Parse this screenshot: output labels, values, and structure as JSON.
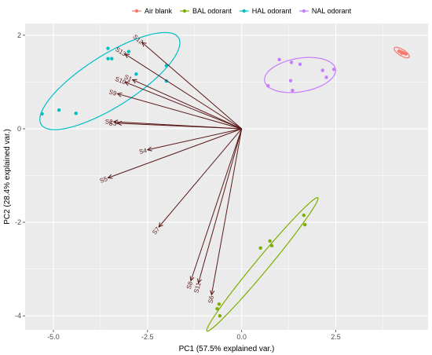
{
  "chart_data": {
    "type": "scatter",
    "title": "",
    "xlabel": "PC1 (57.5% explained var.)",
    "ylabel": "PC2 (28.4% explained var.)",
    "xlim": [
      -5.75,
      4.95
    ],
    "ylim": [
      -4.3,
      2.25
    ],
    "x_ticks": [
      -5.0,
      -2.5,
      0.0,
      2.5
    ],
    "x_tick_labels": [
      "-5.0",
      "-2.5",
      "0.0",
      "2.5"
    ],
    "y_ticks": [
      -4,
      -2,
      0,
      2
    ],
    "y_tick_labels": [
      "-4",
      "-2",
      "0",
      "2"
    ],
    "grid": true,
    "legend_position": "top",
    "series": [
      {
        "name": "Air blank",
        "color": "#F8766D",
        "points": [
          [
            4.18,
            1.66
          ],
          [
            4.24,
            1.64
          ],
          [
            4.3,
            1.62
          ],
          [
            4.36,
            1.6
          ],
          [
            4.25,
            1.62
          ]
        ],
        "ellipse": {
          "cx": 4.25,
          "cy": 1.63,
          "rx": 0.22,
          "ry": 0.07,
          "angle": -25
        }
      },
      {
        "name": "BAL odorant",
        "color": "#7CAE00",
        "points": [
          [
            -0.6,
            -3.75
          ],
          [
            -0.65,
            -3.85
          ],
          [
            -0.58,
            -4.0
          ],
          [
            0.5,
            -2.55
          ],
          [
            0.75,
            -2.4
          ],
          [
            0.8,
            -2.5
          ],
          [
            1.65,
            -1.85
          ],
          [
            1.68,
            -2.05
          ]
        ],
        "ellipse": {
          "cx": 0.55,
          "cy": -2.9,
          "rx": 2.05,
          "ry": 0.16,
          "angle": 44
        }
      },
      {
        "name": "HAL odorant",
        "color": "#00BFC4",
        "points": [
          [
            -5.3,
            0.32
          ],
          [
            -4.85,
            0.4
          ],
          [
            -4.4,
            0.33
          ],
          [
            -3.55,
            1.5
          ],
          [
            -3.45,
            1.5
          ],
          [
            -3.55,
            1.72
          ],
          [
            -3.0,
            1.65
          ],
          [
            -2.8,
            1.17
          ],
          [
            -2.0,
            1.35
          ],
          [
            -2.0,
            1.02
          ]
        ],
        "ellipse": {
          "cx": -3.5,
          "cy": 1.02,
          "rx": 2.05,
          "ry": 0.58,
          "angle": 26
        }
      },
      {
        "name": "NAL odorant",
        "color": "#C77CFF",
        "points": [
          [
            0.7,
            0.92
          ],
          [
            1.0,
            1.48
          ],
          [
            1.3,
            1.03
          ],
          [
            1.35,
            0.82
          ],
          [
            1.32,
            1.42
          ],
          [
            1.55,
            1.38
          ],
          [
            2.15,
            1.25
          ],
          [
            2.25,
            1.1
          ],
          [
            2.45,
            1.27
          ]
        ],
        "ellipse": {
          "cx": 1.55,
          "cy": 1.15,
          "rx": 0.95,
          "ry": 0.36,
          "angle": 7
        }
      }
    ],
    "loadings": {
      "color": "#5c1a1a",
      "origin": [
        0,
        0
      ],
      "arrows": [
        {
          "label": "S1",
          "x": -2.9,
          "y": 1.05
        },
        {
          "label": "S2",
          "x": -3.4,
          "y": 0.15
        },
        {
          "label": "S3",
          "x": -3.3,
          "y": 0.12
        },
        {
          "label": "S4",
          "x": -2.5,
          "y": -0.45
        },
        {
          "label": "S5",
          "x": -3.55,
          "y": -1.05
        },
        {
          "label": "S6",
          "x": -0.8,
          "y": -3.55
        },
        {
          "label": "S7",
          "x": -2.2,
          "y": -2.1
        },
        {
          "label": "S8",
          "x": -1.35,
          "y": -3.25
        },
        {
          "label": "S9",
          "x": -3.3,
          "y": 0.75
        },
        {
          "label": "S10",
          "x": -3.1,
          "y": 1.0
        },
        {
          "label": "S11",
          "x": -1.15,
          "y": -3.3
        },
        {
          "label": "S12",
          "x": -2.65,
          "y": 1.85
        },
        {
          "label": "S13",
          "x": -3.1,
          "y": 1.6
        }
      ]
    }
  }
}
